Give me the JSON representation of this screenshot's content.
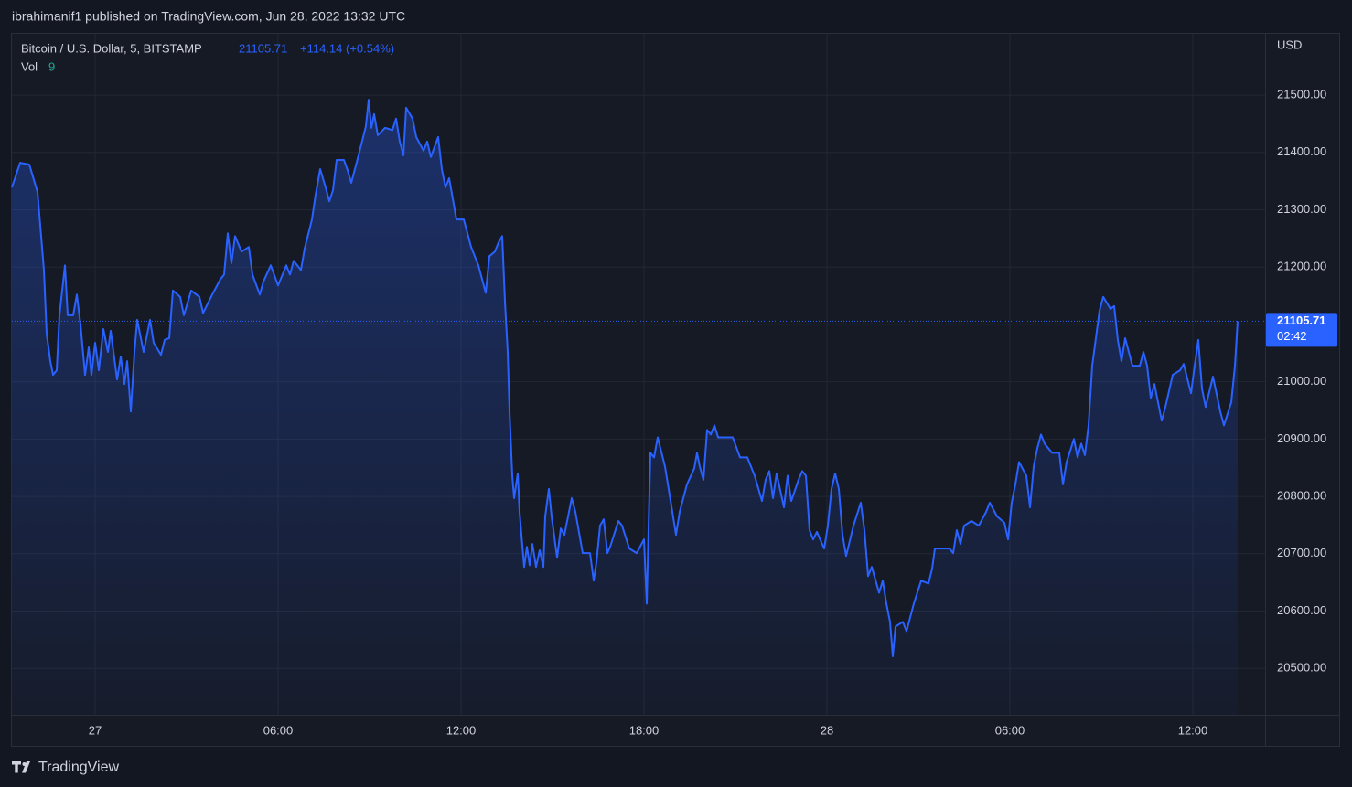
{
  "header": {
    "text": "ibrahimanif1 published on TradingView.com, Jun 28, 2022 13:32 UTC"
  },
  "footer": {
    "brand": "TradingView"
  },
  "chart_data": {
    "type": "line",
    "symbol": "Bitcoin / U.S. Dollar, 5, BITSTAMP",
    "change": "+114.14 (+0.54%)",
    "volume_label": "Vol",
    "volume_value": "9",
    "currency": "USD",
    "countdown": "02:42",
    "color": "#2962ff",
    "grid": true,
    "xlim": [
      -2.73,
      38.37
    ],
    "xticks": [
      {
        "value": 0,
        "label": "27"
      },
      {
        "value": 6,
        "label": "06:00"
      },
      {
        "value": 12,
        "label": "12:00"
      },
      {
        "value": 18,
        "label": "18:00"
      },
      {
        "value": 24,
        "label": "28"
      },
      {
        "value": 30,
        "label": "06:00"
      },
      {
        "value": 36,
        "label": "12:00"
      }
    ],
    "ylim": [
      20419,
      21599
    ],
    "yticks": [
      {
        "value": 20500,
        "label": "20500.00"
      },
      {
        "value": 20600,
        "label": "20600.00"
      },
      {
        "value": 20700,
        "label": "20700.00"
      },
      {
        "value": 20800,
        "label": "20800.00"
      },
      {
        "value": 20900,
        "label": "20900.00"
      },
      {
        "value": 21000,
        "label": "21000.00"
      },
      {
        "value": 21100,
        "label": "21100.00"
      },
      {
        "value": 21200,
        "label": "21200.00"
      },
      {
        "value": 21300,
        "label": "21300.00"
      },
      {
        "value": 21400,
        "label": "21400.00"
      },
      {
        "value": 21500,
        "label": "21500.00"
      }
    ],
    "x": [
      -2.73,
      -2.46,
      -2.16,
      -1.89,
      -1.68,
      -1.59,
      -1.47,
      -1.38,
      -1.26,
      -1.17,
      -0.99,
      -0.9,
      -0.72,
      -0.6,
      -0.48,
      -0.33,
      -0.21,
      -0.12,
      0,
      0.12,
      0.27,
      0.42,
      0.51,
      0.72,
      0.84,
      0.96,
      1.05,
      1.17,
      1.29,
      1.38,
      1.59,
      1.8,
      1.92,
      2.16,
      2.28,
      2.43,
      2.55,
      2.79,
      2.91,
      3.15,
      3.42,
      3.54,
      3.84,
      4.11,
      4.23,
      4.35,
      4.47,
      4.59,
      4.8,
      5.04,
      5.16,
      5.4,
      5.52,
      5.76,
      6,
      6.27,
      6.39,
      6.51,
      6.75,
      6.87,
      7.11,
      7.23,
      7.38,
      7.56,
      7.68,
      7.8,
      7.92,
      8.16,
      8.28,
      8.4,
      8.64,
      8.88,
      8.97,
      9.06,
      9.15,
      9.27,
      9.51,
      9.75,
      9.87,
      9.99,
      10.11,
      10.2,
      10.41,
      10.53,
      10.77,
      10.89,
      11.01,
      11.25,
      11.37,
      11.49,
      11.61,
      11.85,
      12.09,
      12.33,
      12.57,
      12.81,
      12.93,
      13.11,
      13.23,
      13.35,
      13.44,
      13.53,
      13.59,
      13.68,
      13.74,
      13.86,
      13.92,
      13.98,
      14.07,
      14.16,
      14.25,
      14.34,
      14.46,
      14.58,
      14.7,
      14.76,
      14.88,
      14.97,
      15.15,
      15.27,
      15.39,
      15.63,
      15.75,
      15.99,
      16.23,
      16.35,
      16.44,
      16.56,
      16.68,
      16.8,
      16.89,
      17.16,
      17.28,
      17.52,
      17.76,
      18,
      18.09,
      18.21,
      18.33,
      18.45,
      18.69,
      18.93,
      19.05,
      19.17,
      19.41,
      19.65,
      19.74,
      19.83,
      19.95,
      20.07,
      20.19,
      20.31,
      20.43,
      20.67,
      20.91,
      21.15,
      21.39,
      21.63,
      21.87,
      21.99,
      22.11,
      22.23,
      22.35,
      22.59,
      22.71,
      22.83,
      23.07,
      23.19,
      23.31,
      23.43,
      23.55,
      23.67,
      23.91,
      24.03,
      24.15,
      24.27,
      24.39,
      24.51,
      24.63,
      24.87,
      25.11,
      25.23,
      25.35,
      25.47,
      25.71,
      25.83,
      25.95,
      26.07,
      26.16,
      26.25,
      26.49,
      26.61,
      26.85,
      27.09,
      27.33,
      27.45,
      27.54,
      27.78,
      28.02,
      28.14,
      28.26,
      28.38,
      28.5,
      28.74,
      28.98,
      29.22,
      29.34,
      29.58,
      29.82,
      29.94,
      30.06,
      30.18,
      30.3,
      30.54,
      30.66,
      30.78,
      30.9,
      31.02,
      31.14,
      31.38,
      31.62,
      31.74,
      31.86,
      32.1,
      32.22,
      32.34,
      32.46,
      32.58,
      32.7,
      32.82,
      32.94,
      33.06,
      33.3,
      33.42,
      33.54,
      33.66,
      33.78,
      34.02,
      34.26,
      34.38,
      34.5,
      34.62,
      34.74,
      34.98,
      35.1,
      35.34,
      35.58,
      35.7,
      35.94,
      36.06,
      36.18,
      36.3,
      36.42,
      36.66,
      36.9,
      37.02,
      37.26,
      37.38,
      37.47
    ],
    "values": [
      21339,
      21382,
      21379,
      21331,
      21195,
      21084,
      21036,
      21012,
      21020,
      21116,
      21203,
      21116,
      21116,
      21152,
      21100,
      21012,
      21060,
      21012,
      21068,
      21020,
      21092,
      21052,
      21089,
      21004,
      21044,
      20996,
      21036,
      20948,
      21052,
      21108,
      21052,
      21108,
      21068,
      21047,
      21073,
      21076,
      21159,
      21148,
      21116,
      21159,
      21148,
      21120,
      21152,
      21179,
      21187,
      21259,
      21207,
      21254,
      21227,
      21235,
      21187,
      21152,
      21175,
      21203,
      21168,
      21203,
      21187,
      21211,
      21195,
      21232,
      21283,
      21326,
      21371,
      21339,
      21315,
      21334,
      21387,
      21387,
      21369,
      21347,
      21395,
      21446,
      21492,
      21443,
      21467,
      21430,
      21443,
      21439,
      21459,
      21419,
      21395,
      21478,
      21459,
      21427,
      21403,
      21419,
      21392,
      21427,
      21371,
      21339,
      21355,
      21283,
      21283,
      21235,
      21203,
      21155,
      21219,
      21227,
      21243,
      21254,
      21140,
      21052,
      20948,
      20836,
      20797,
      20840,
      20773,
      20733,
      20677,
      20712,
      20680,
      20717,
      20677,
      20706,
      20677,
      20765,
      20813,
      20765,
      20693,
      20744,
      20733,
      20797,
      20773,
      20701,
      20701,
      20653,
      20685,
      20749,
      20760,
      20701,
      20712,
      20757,
      20749,
      20709,
      20701,
      20725,
      20613,
      20876,
      20868,
      20903,
      20852,
      20773,
      20733,
      20773,
      20821,
      20849,
      20876,
      20852,
      20829,
      20916,
      20908,
      20924,
      20903,
      20903,
      20903,
      20868,
      20868,
      20836,
      20792,
      20829,
      20844,
      20797,
      20840,
      20781,
      20836,
      20792,
      20829,
      20844,
      20836,
      20741,
      20725,
      20738,
      20709,
      20749,
      20813,
      20840,
      20813,
      20733,
      20696,
      20749,
      20789,
      20741,
      20661,
      20677,
      20632,
      20653,
      20613,
      20581,
      20521,
      20573,
      20581,
      20565,
      20613,
      20653,
      20648,
      20674,
      20709,
      20709,
      20709,
      20701,
      20741,
      20717,
      20749,
      20757,
      20749,
      20773,
      20789,
      20765,
      20754,
      20725,
      20789,
      20821,
      20860,
      20836,
      20781,
      20852,
      20884,
      20908,
      20892,
      20876,
      20876,
      20821,
      20860,
      20900,
      20868,
      20892,
      20872,
      20924,
      21028,
      21076,
      21124,
      21148,
      21127,
      21132,
      21073,
      21036,
      21076,
      21028,
      21028,
      21052,
      21028,
      20972,
      20996,
      20932,
      20956,
      21012,
      21020,
      21031,
      20980,
      21028,
      21073,
      20988,
      20956,
      21009,
      20948,
      20924,
      20964,
      21028,
      21105.71
    ]
  }
}
